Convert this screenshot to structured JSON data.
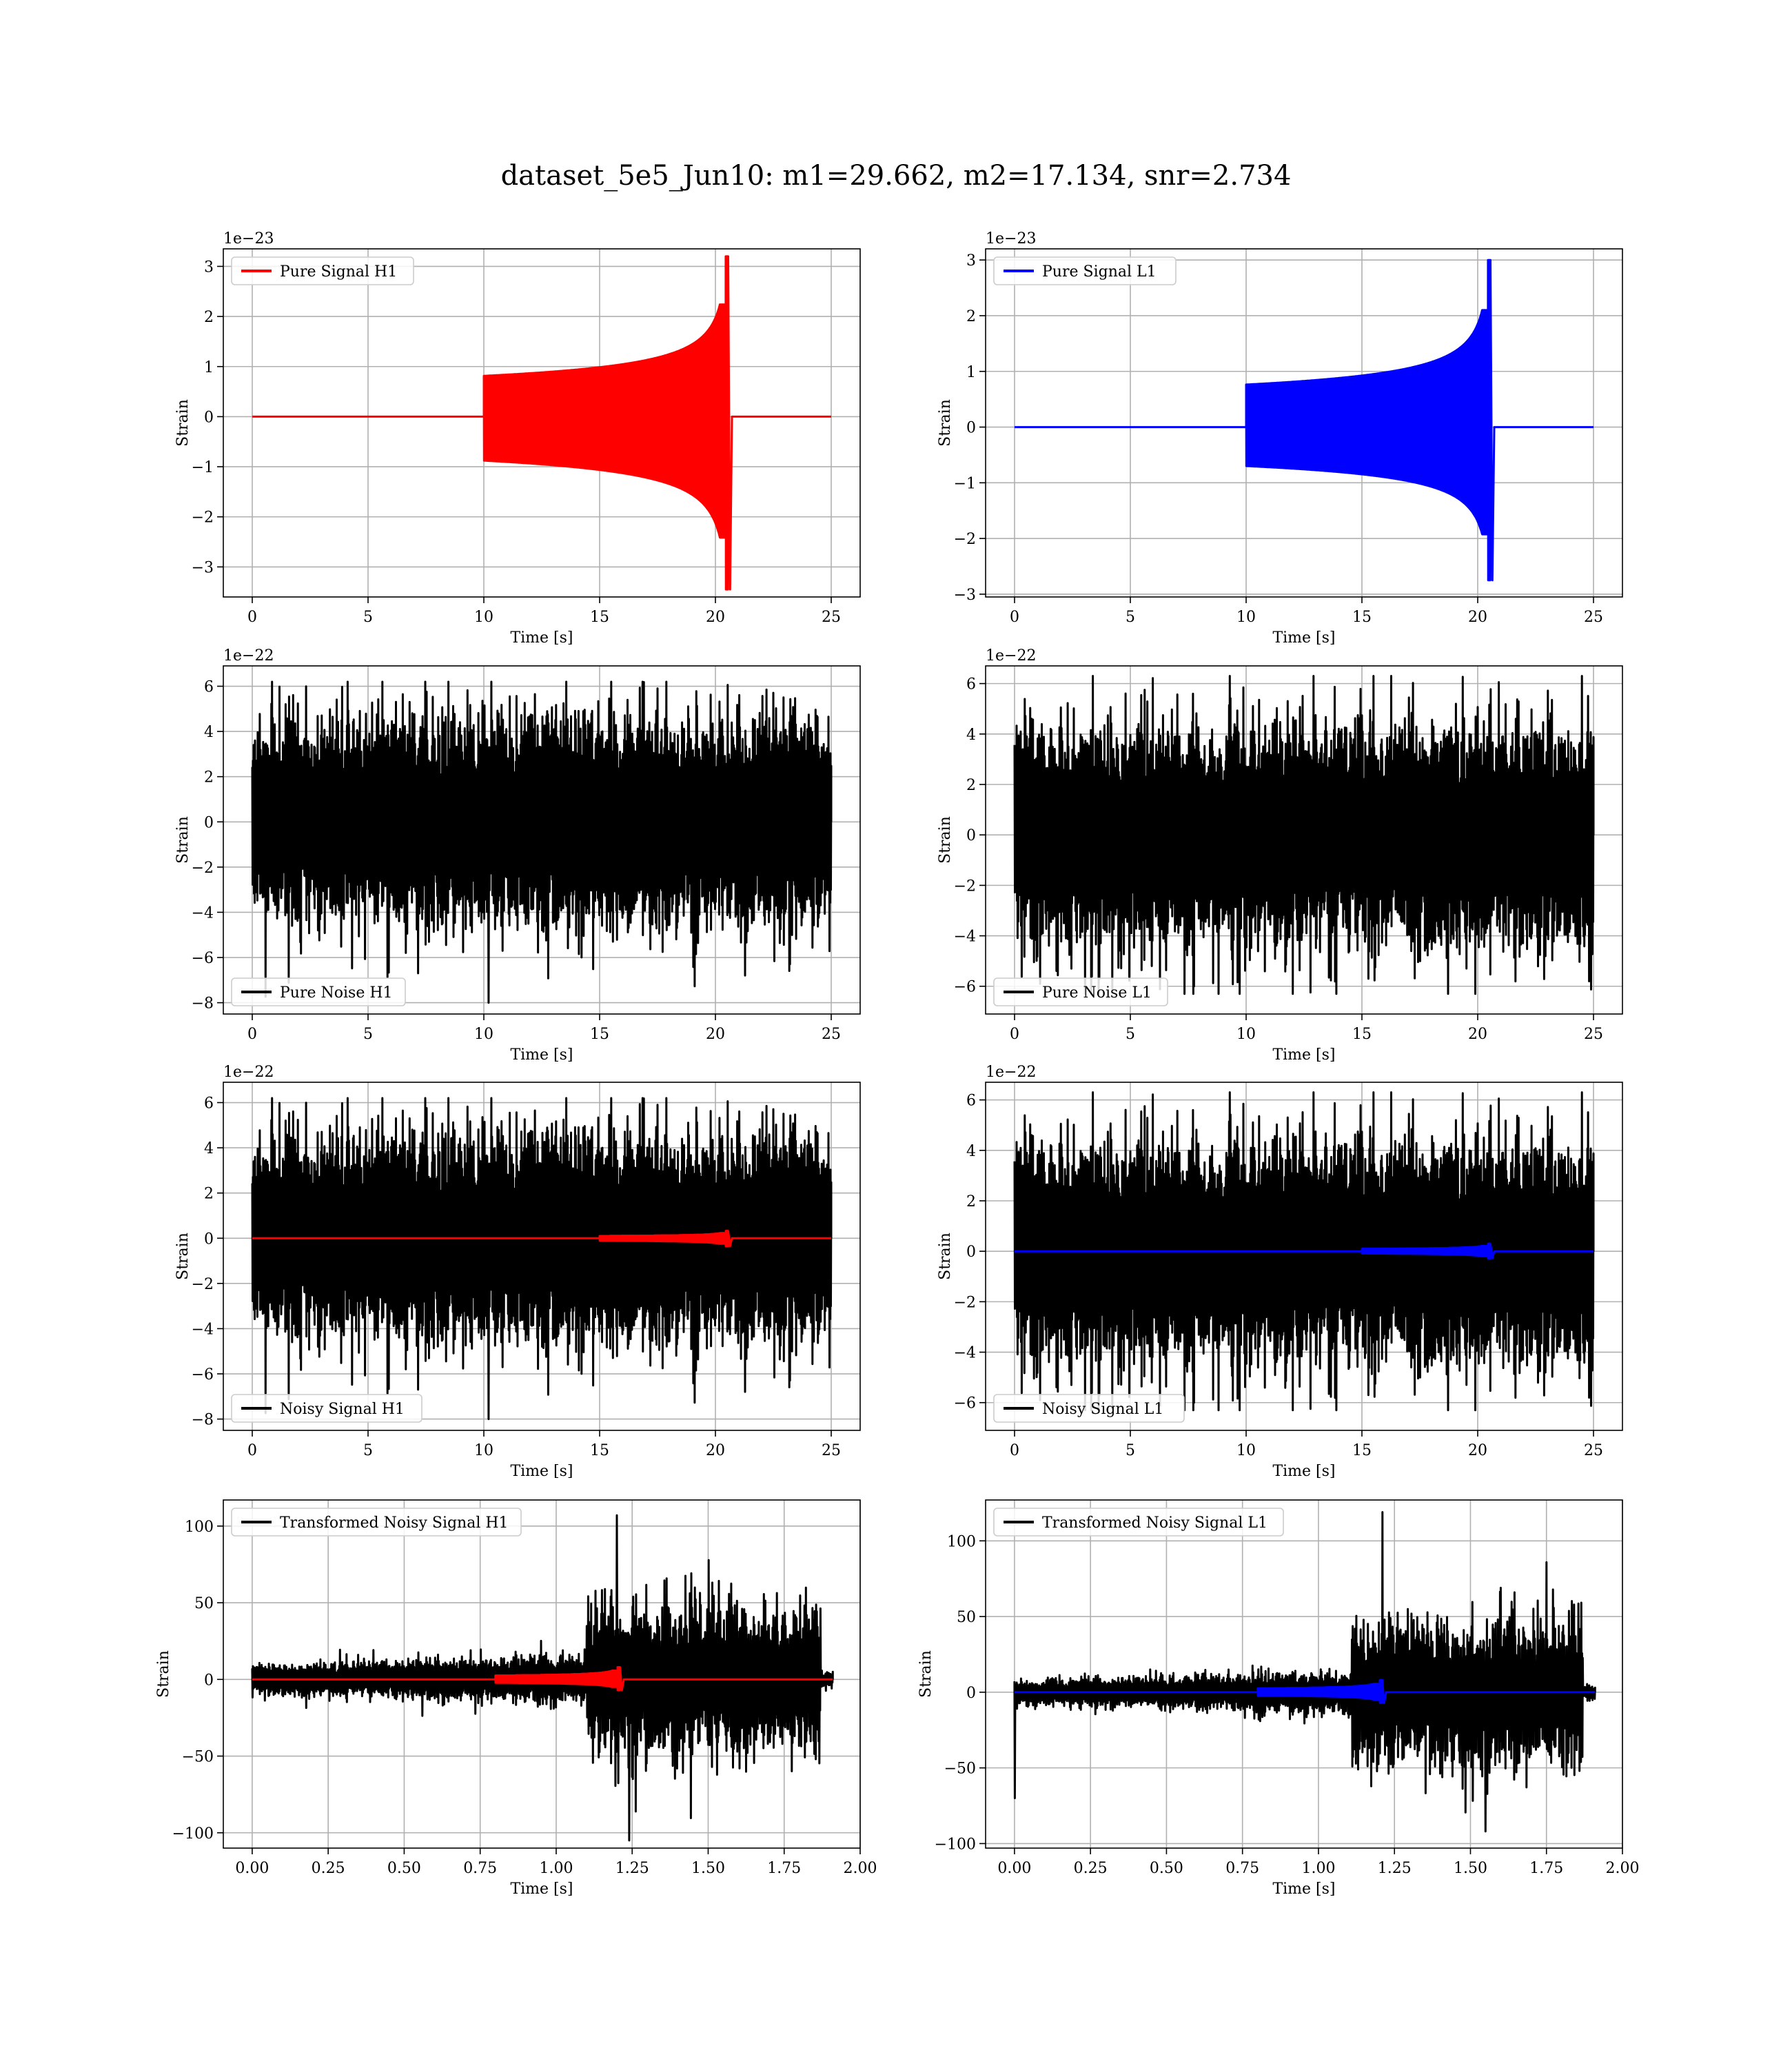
{
  "figure_title": "dataset_5e5_Jun10: m1=29.662, m2=17.134, snr=2.734",
  "colors": {
    "h1": "#ff0000",
    "l1": "#0000ff",
    "noise": "#000000",
    "grid": "#b0b0b0"
  },
  "chart_data": [
    {
      "id": "pure-signal-h1",
      "type": "line",
      "title": "",
      "xlabel": "Time [s]",
      "ylabel": "Strain",
      "offset_text": "1e−23",
      "xlim": [
        -1.25,
        26.25
      ],
      "ylim": [
        -3.6,
        3.35
      ],
      "xticks": [
        0,
        5,
        10,
        15,
        20,
        25
      ],
      "xtick_labels": [
        "0",
        "5",
        "10",
        "15",
        "20",
        "25"
      ],
      "yticks": [
        -3,
        -2,
        -1,
        0,
        1,
        2,
        3
      ],
      "ytick_labels": [
        "−3",
        "−2",
        "−1",
        "0",
        "1",
        "2",
        "3"
      ],
      "legend": {
        "placement": "upper left",
        "entries": [
          {
            "label": "Pure Signal H1",
            "color": "#ff0000"
          }
        ]
      },
      "series": [
        {
          "name": "Pure Signal H1",
          "color": "#ff0000",
          "kind": "chirp",
          "t_merge": 20.55,
          "max": 3.2,
          "min": -3.45,
          "start": 10,
          "end": 25
        }
      ]
    },
    {
      "id": "pure-signal-l1",
      "type": "line",
      "title": "",
      "xlabel": "Time [s]",
      "ylabel": "Strain",
      "offset_text": "1e−23",
      "xlim": [
        -1.25,
        26.25
      ],
      "ylim": [
        -3.05,
        3.2
      ],
      "xticks": [
        0,
        5,
        10,
        15,
        20,
        25
      ],
      "xtick_labels": [
        "0",
        "5",
        "10",
        "15",
        "20",
        "25"
      ],
      "yticks": [
        -3,
        -2,
        -1,
        0,
        1,
        2,
        3
      ],
      "ytick_labels": [
        "−3",
        "−2",
        "−1",
        "0",
        "1",
        "2",
        "3"
      ],
      "legend": {
        "placement": "upper left",
        "entries": [
          {
            "label": "Pure Signal L1",
            "color": "#0000ff"
          }
        ]
      },
      "series": [
        {
          "name": "Pure Signal L1",
          "color": "#0000ff",
          "kind": "chirp",
          "t_merge": 20.55,
          "max": 3.0,
          "min": -2.75,
          "start": 10,
          "end": 25
        }
      ]
    },
    {
      "id": "pure-noise-h1",
      "type": "line",
      "title": "",
      "xlabel": "Time [s]",
      "ylabel": "Strain",
      "offset_text": "1e−22",
      "xlim": [
        -1.25,
        26.25
      ],
      "ylim": [
        -8.5,
        6.9
      ],
      "xticks": [
        0,
        5,
        10,
        15,
        20,
        25
      ],
      "xtick_labels": [
        "0",
        "5",
        "10",
        "15",
        "20",
        "25"
      ],
      "yticks": [
        -8,
        -6,
        -4,
        -2,
        0,
        2,
        4,
        6
      ],
      "ytick_labels": [
        "−8",
        "−6",
        "−4",
        "−2",
        "0",
        "2",
        "4",
        "6"
      ],
      "legend": {
        "placement": "lower left",
        "entries": [
          {
            "label": "Pure Noise H1",
            "color": "#000000"
          }
        ]
      },
      "series": [
        {
          "name": "Pure Noise H1",
          "color": "#000000",
          "kind": "noise",
          "t_start": 0,
          "t_end": 25,
          "band_hi": 3.6,
          "band_lo": -3.6,
          "peak_max": 6.2,
          "peak_min": -8.0,
          "t_peak_min": 10.2,
          "seed": 11
        }
      ]
    },
    {
      "id": "pure-noise-l1",
      "type": "line",
      "title": "",
      "xlabel": "Time [s]",
      "ylabel": "Strain",
      "offset_text": "1e−22",
      "xlim": [
        -1.25,
        26.25
      ],
      "ylim": [
        -7.1,
        6.7
      ],
      "xticks": [
        0,
        5,
        10,
        15,
        20,
        25
      ],
      "xtick_labels": [
        "0",
        "5",
        "10",
        "15",
        "20",
        "25"
      ],
      "yticks": [
        -6,
        -4,
        -2,
        0,
        2,
        4,
        6
      ],
      "ytick_labels": [
        "−6",
        "−4",
        "−2",
        "0",
        "2",
        "4",
        "6"
      ],
      "legend": {
        "placement": "lower left",
        "entries": [
          {
            "label": "Pure Noise L1",
            "color": "#000000"
          }
        ]
      },
      "series": [
        {
          "name": "Pure Noise L1",
          "color": "#000000",
          "kind": "noise",
          "t_start": 0,
          "t_end": 25,
          "band_hi": 3.4,
          "band_lo": -3.4,
          "peak_max": 6.3,
          "peak_min": -6.3,
          "t_peak_min": 13.9,
          "seed": 23
        }
      ]
    },
    {
      "id": "noisy-signal-h1",
      "type": "line",
      "title": "",
      "xlabel": "Time [s]",
      "ylabel": "Strain",
      "offset_text": "1e−22",
      "xlim": [
        -1.25,
        26.25
      ],
      "ylim": [
        -8.5,
        6.9
      ],
      "xticks": [
        0,
        5,
        10,
        15,
        20,
        25
      ],
      "xtick_labels": [
        "0",
        "5",
        "10",
        "15",
        "20",
        "25"
      ],
      "yticks": [
        -8,
        -6,
        -4,
        -2,
        0,
        2,
        4,
        6
      ],
      "ytick_labels": [
        "−8",
        "−6",
        "−4",
        "−2",
        "0",
        "2",
        "4",
        "6"
      ],
      "legend": {
        "placement": "lower left",
        "entries": [
          {
            "label": "Noisy Signal H1",
            "color": "#000000"
          }
        ]
      },
      "series": [
        {
          "name": "Noisy Signal H1",
          "color": "#000000",
          "kind": "noise",
          "t_start": 0,
          "t_end": 25,
          "band_hi": 3.6,
          "band_lo": -3.6,
          "peak_max": 6.2,
          "peak_min": -8.0,
          "t_peak_min": 10.2,
          "seed": 11
        },
        {
          "name": "Pure Signal H1",
          "color": "#ff0000",
          "kind": "chirp",
          "t_merge": 20.55,
          "max": 0.32,
          "min": -0.35,
          "start": 15,
          "end": 25
        }
      ]
    },
    {
      "id": "noisy-signal-l1",
      "type": "line",
      "title": "",
      "xlabel": "Time [s]",
      "ylabel": "Strain",
      "offset_text": "1e−22",
      "xlim": [
        -1.25,
        26.25
      ],
      "ylim": [
        -7.1,
        6.7
      ],
      "xticks": [
        0,
        5,
        10,
        15,
        20,
        25
      ],
      "xtick_labels": [
        "0",
        "5",
        "10",
        "15",
        "20",
        "25"
      ],
      "yticks": [
        -6,
        -4,
        -2,
        0,
        2,
        4,
        6
      ],
      "ytick_labels": [
        "−6",
        "−4",
        "−2",
        "0",
        "2",
        "4",
        "6"
      ],
      "legend": {
        "placement": "lower left",
        "entries": [
          {
            "label": "Noisy Signal L1",
            "color": "#000000"
          }
        ]
      },
      "series": [
        {
          "name": "Noisy Signal L1",
          "color": "#000000",
          "kind": "noise",
          "t_start": 0,
          "t_end": 25,
          "band_hi": 3.4,
          "band_lo": -3.4,
          "peak_max": 6.3,
          "peak_min": -6.3,
          "t_peak_min": 13.9,
          "seed": 23
        },
        {
          "name": "Pure Signal L1",
          "color": "#0000ff",
          "kind": "chirp",
          "t_merge": 20.55,
          "max": 0.3,
          "min": -0.28,
          "start": 15,
          "end": 25
        }
      ]
    },
    {
      "id": "transformed-noisy-signal-h1",
      "type": "line",
      "title": "",
      "xlabel": "Time [s]",
      "ylabel": "Strain",
      "offset_text": "",
      "xlim": [
        -0.095,
        2.0
      ],
      "ylim": [
        -110,
        117
      ],
      "xticks": [
        0,
        0.25,
        0.5,
        0.75,
        1.0,
        1.25,
        1.5,
        1.75,
        2.0
      ],
      "xtick_labels": [
        "0.00",
        "0.25",
        "0.50",
        "0.75",
        "1.00",
        "1.25",
        "1.50",
        "1.75",
        "2.00"
      ],
      "yticks": [
        -100,
        -50,
        0,
        50,
        100
      ],
      "ytick_labels": [
        "−100",
        "−50",
        "0",
        "50",
        "100"
      ],
      "legend": {
        "placement": "upper left",
        "entries": [
          {
            "label": "Transformed Noisy Signal H1",
            "color": "#000000"
          }
        ]
      },
      "series": [
        {
          "name": "Transformed Noisy Signal H1",
          "color": "#000000",
          "kind": "transformed",
          "t_start": 0,
          "t_end": 1.91,
          "t_jump": 1.1,
          "t_cut": 1.87,
          "low_band": 8,
          "high_band": 40,
          "peak_max": 107,
          "peak_min": -105,
          "t_peak_min": 1.24,
          "seed": 37
        },
        {
          "name": "Pure Signal H1",
          "color": "#ff0000",
          "kind": "chirp",
          "t_merge": 1.21,
          "max": 8,
          "min": -7,
          "start": 0.8,
          "end": 1.91
        }
      ]
    },
    {
      "id": "transformed-noisy-signal-l1",
      "type": "line",
      "title": "",
      "xlabel": "Time [s]",
      "ylabel": "Strain",
      "offset_text": "",
      "xlim": [
        -0.095,
        2.0
      ],
      "ylim": [
        -103,
        127
      ],
      "xticks": [
        0,
        0.25,
        0.5,
        0.75,
        1.0,
        1.25,
        1.5,
        1.75,
        2.0
      ],
      "xtick_labels": [
        "0.00",
        "0.25",
        "0.50",
        "0.75",
        "1.00",
        "1.25",
        "1.50",
        "1.75",
        "2.00"
      ],
      "yticks": [
        -100,
        -50,
        0,
        50,
        100
      ],
      "ytick_labels": [
        "−100",
        "−50",
        "0",
        "50",
        "100"
      ],
      "legend": {
        "placement": "upper left",
        "entries": [
          {
            "label": "Transformed Noisy Signal L1",
            "color": "#000000"
          }
        ]
      },
      "series": [
        {
          "name": "Transformed Noisy Signal L1",
          "color": "#000000",
          "kind": "transformed",
          "t_start": 0,
          "t_end": 1.91,
          "t_jump": 1.11,
          "t_cut": 1.87,
          "low_band": 7,
          "high_band": 40,
          "peak_max": 119,
          "peak_min": -92,
          "t_peak_min": 1.55,
          "t_start_spike": -70,
          "seed": 53
        },
        {
          "name": "Pure Signal L1",
          "color": "#0000ff",
          "kind": "chirp",
          "t_merge": 1.21,
          "max": 8,
          "min": -7,
          "start": 0.8,
          "end": 1.91
        }
      ]
    }
  ]
}
